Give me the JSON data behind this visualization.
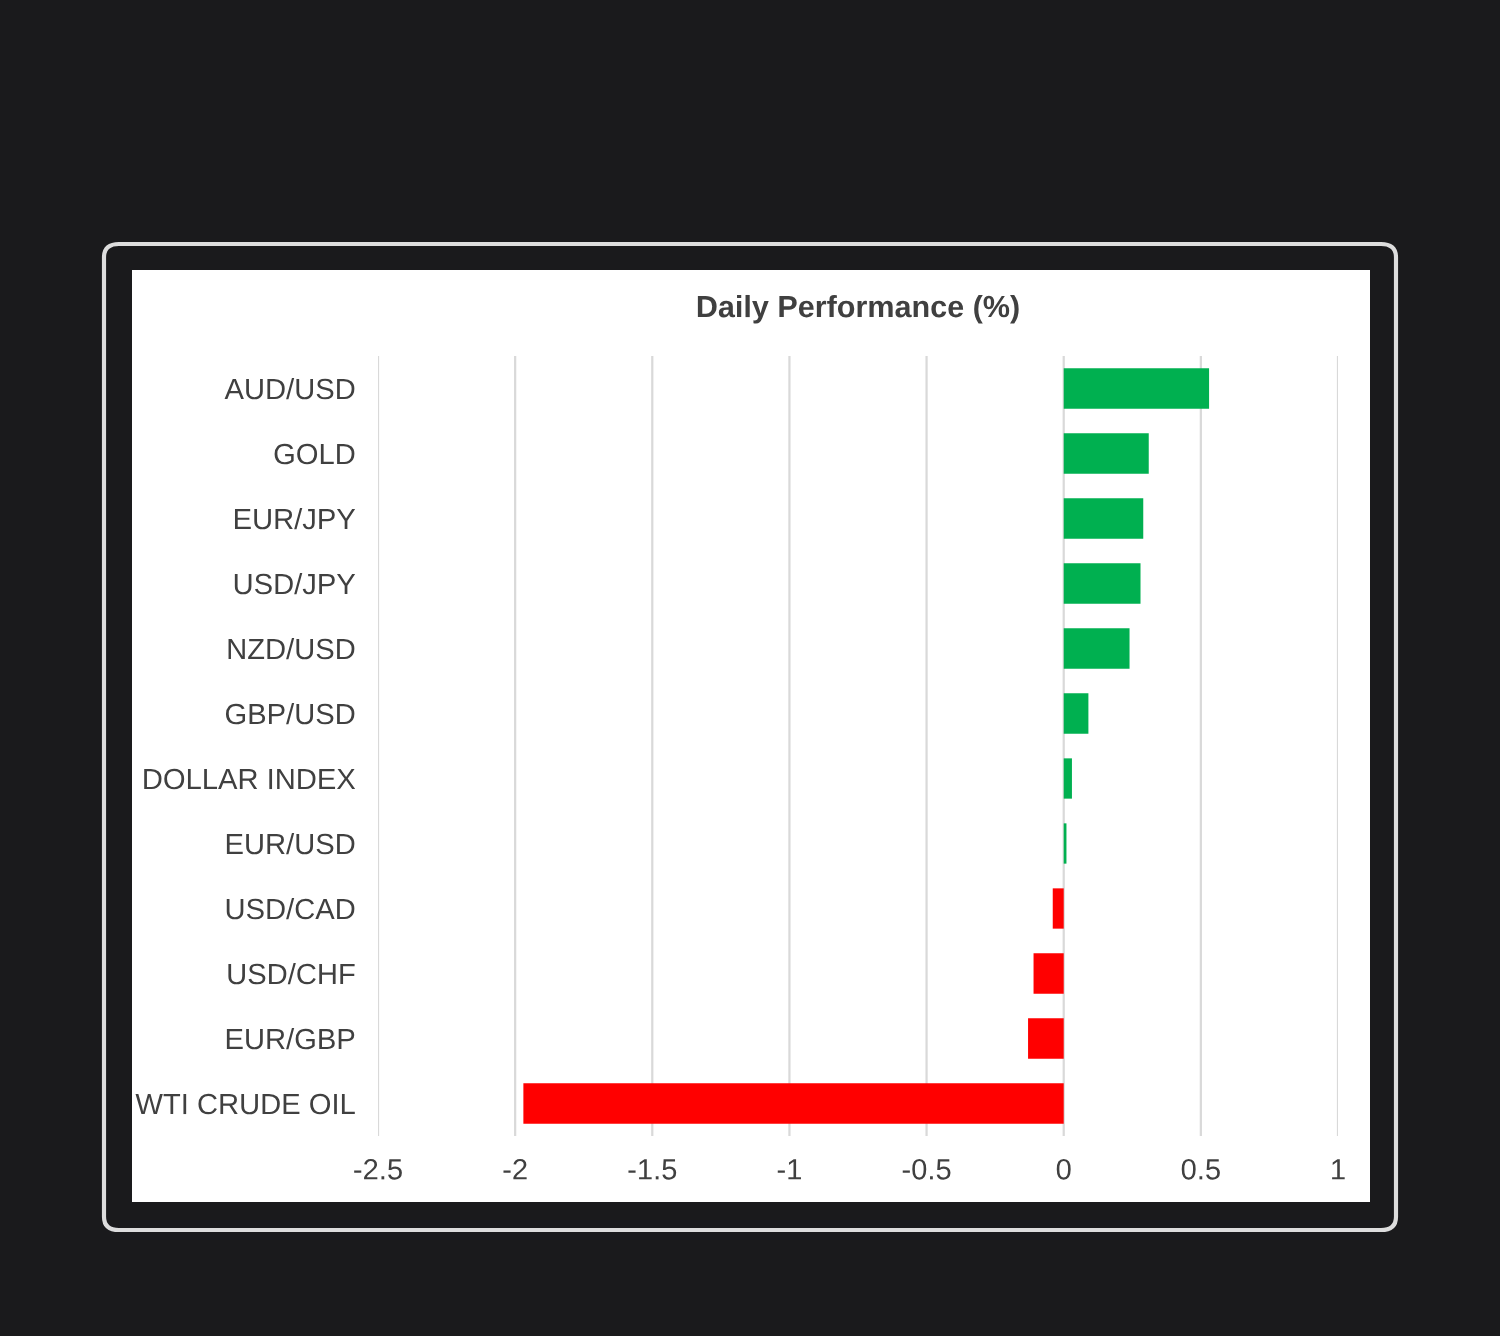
{
  "chart_data": {
    "type": "bar",
    "orientation": "horizontal",
    "title": "Daily Performance (%)",
    "categories": [
      "AUD/USD",
      "GOLD",
      "EUR/JPY",
      "USD/JPY",
      "NZD/USD",
      "GBP/USD",
      "DOLLAR INDEX",
      "EUR/USD",
      "USD/CAD",
      "USD/CHF",
      "EUR/GBP",
      "WTI CRUDE OIL"
    ],
    "values": [
      0.53,
      0.31,
      0.29,
      0.28,
      0.24,
      0.09,
      0.03,
      0.01,
      -0.04,
      -0.11,
      -0.13,
      -1.97
    ],
    "colors": [
      "#00b050",
      "#00b050",
      "#00b050",
      "#00b050",
      "#00b050",
      "#00b050",
      "#00b050",
      "#00b050",
      "#ff0000",
      "#ff0000",
      "#ff0000",
      "#ff0000"
    ],
    "xlim": [
      -2.5,
      1
    ],
    "xticks": [
      -2.5,
      -2,
      -1.5,
      -1,
      -0.5,
      0,
      0.5,
      1
    ],
    "grid": "x",
    "legend": false
  }
}
